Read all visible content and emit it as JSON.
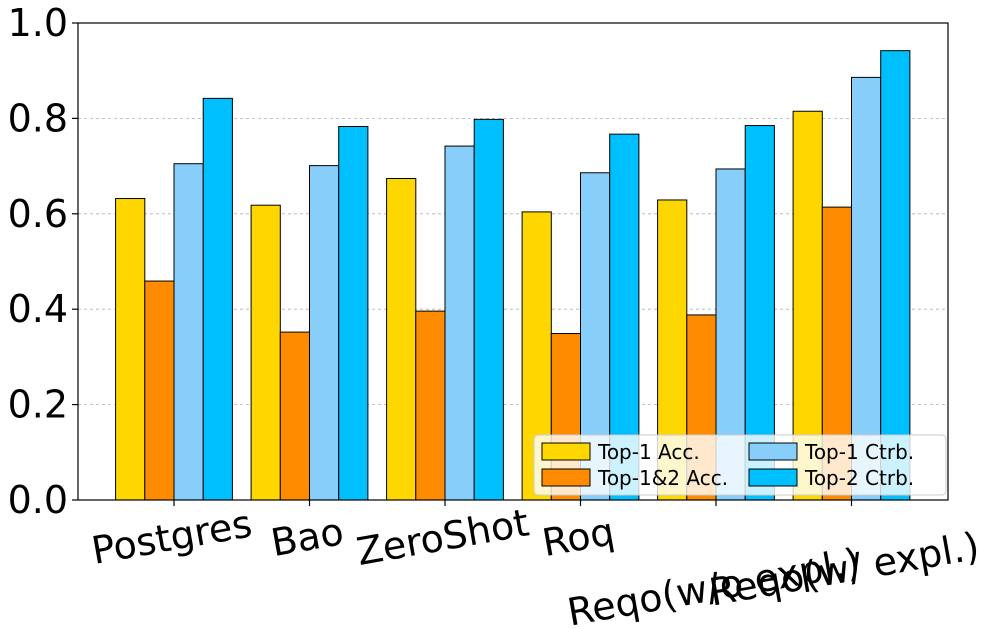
{
  "chart_data": {
    "type": "bar",
    "title": "",
    "xlabel": "",
    "ylabel": "",
    "ylim": [
      0,
      1.0
    ],
    "yticks": [
      "0.0",
      "0.2",
      "0.4",
      "0.6",
      "0.8",
      "1.0"
    ],
    "ytick_values": [
      0.0,
      0.2,
      0.4,
      0.6,
      0.8,
      1.0
    ],
    "grid": "horizontal-dashed",
    "categories": [
      "Postgres",
      "Bao",
      "ZeroShot",
      "Roq",
      "Reqo(w/o expl.)",
      "Reqo(w/ expl.)"
    ],
    "series": [
      {
        "name": "Top-1 Acc.",
        "color": "#FFD700",
        "values": [
          0.632,
          0.618,
          0.674,
          0.604,
          0.629,
          0.815
        ]
      },
      {
        "name": "Top-1&2 Acc.",
        "color": "#FF8C00",
        "values": [
          0.459,
          0.352,
          0.396,
          0.349,
          0.388,
          0.614
        ]
      },
      {
        "name": "Top-1 Ctrb.",
        "color": "#87CEFA",
        "values": [
          0.705,
          0.701,
          0.742,
          0.686,
          0.694,
          0.886
        ]
      },
      {
        "name": "Top-2 Ctrb.",
        "color": "#00BFFF",
        "values": [
          0.842,
          0.783,
          0.798,
          0.767,
          0.785,
          0.942
        ]
      }
    ],
    "legend": {
      "position": "lower-right",
      "columns": 2
    }
  }
}
